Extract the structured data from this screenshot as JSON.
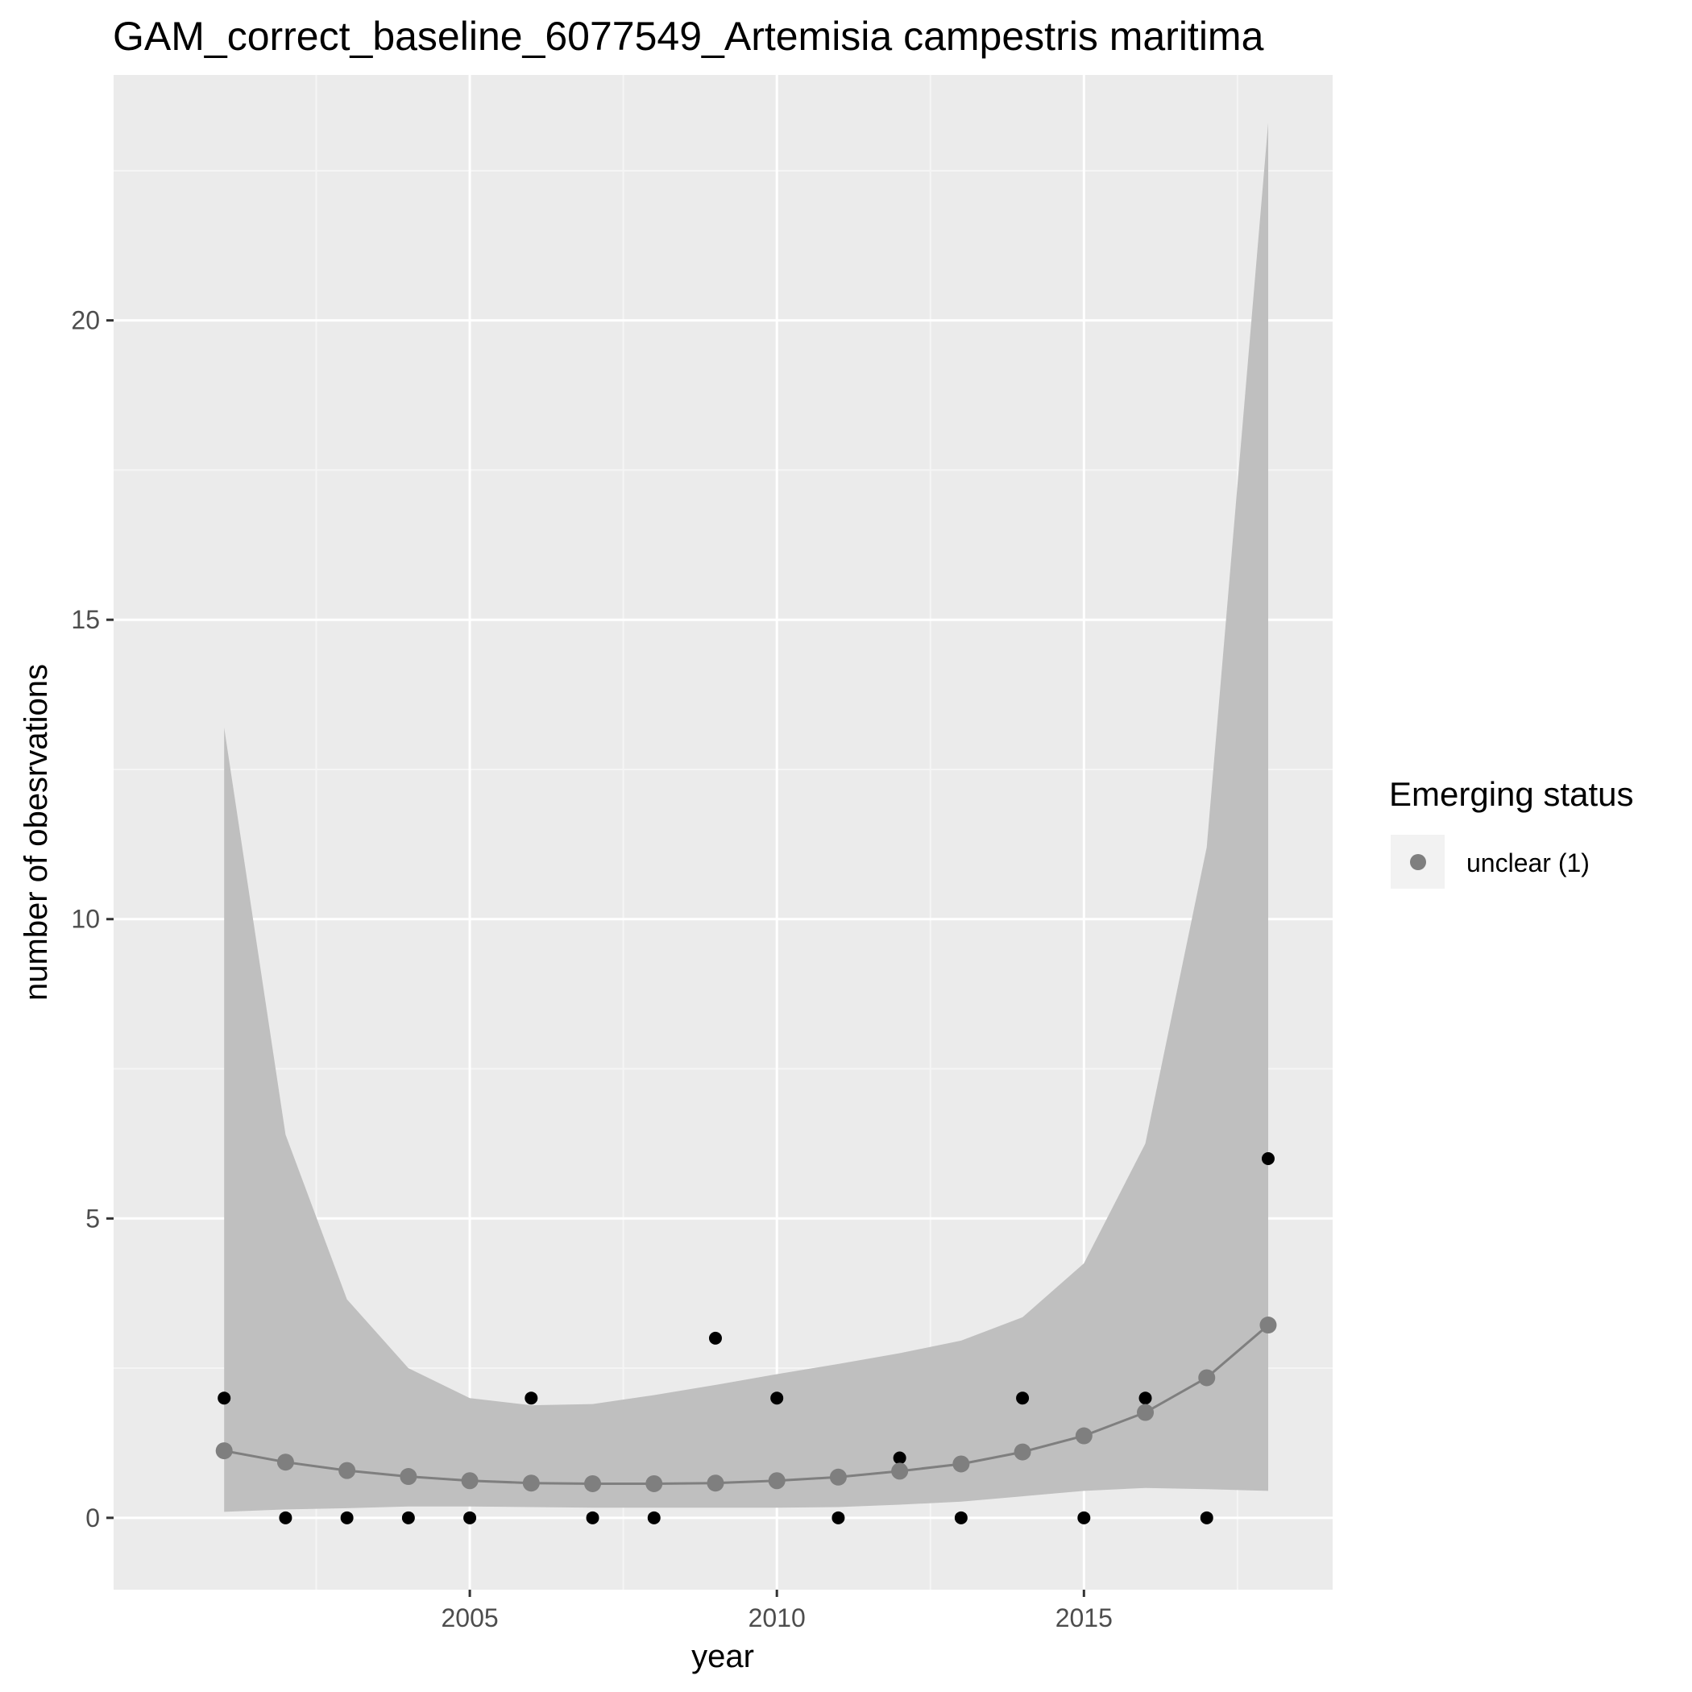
{
  "chart_data": {
    "type": "scatter",
    "title": "GAM_correct_baseline_6077549_Artemisia campestris maritima",
    "xlabel": "year",
    "ylabel": "number of obesrvations",
    "xlim": [
      1999.2,
      2019.05
    ],
    "ylim": [
      -1.2,
      24.1
    ],
    "x_ticks": [
      2005,
      2010,
      2015
    ],
    "y_ticks": [
      0,
      5,
      10,
      15,
      20
    ],
    "grid": true,
    "legend": {
      "title": "Emerging status",
      "position": "right",
      "entries": [
        {
          "label": "unclear (1)",
          "color": "#7f7f7f"
        }
      ]
    },
    "observed": {
      "x": [
        2001,
        2002,
        2003,
        2004,
        2005,
        2006,
        2007,
        2008,
        2009,
        2010,
        2011,
        2012,
        2013,
        2014,
        2015,
        2016,
        2017,
        2018
      ],
      "y": [
        2,
        0,
        0,
        0,
        0,
        2,
        0,
        0,
        3,
        2,
        0,
        1,
        0,
        2,
        0,
        2,
        0,
        6
      ],
      "color": "#000000"
    },
    "fitted": {
      "name": "unclear (1)",
      "x": [
        2001,
        2002,
        2003,
        2004,
        2005,
        2006,
        2007,
        2008,
        2009,
        2010,
        2011,
        2012,
        2013,
        2014,
        2015,
        2016,
        2017,
        2018
      ],
      "y": [
        1.12,
        0.93,
        0.79,
        0.69,
        0.62,
        0.58,
        0.57,
        0.57,
        0.58,
        0.62,
        0.68,
        0.78,
        0.9,
        1.1,
        1.37,
        1.76,
        2.34,
        3.22
      ],
      "lower": [
        0.1,
        0.14,
        0.16,
        0.19,
        0.19,
        0.18,
        0.17,
        0.17,
        0.17,
        0.17,
        0.18,
        0.22,
        0.27,
        0.36,
        0.45,
        0.5,
        0.48,
        0.45
      ],
      "upper": [
        13.2,
        6.4,
        3.65,
        2.5,
        2.0,
        1.88,
        1.9,
        2.05,
        2.22,
        2.4,
        2.57,
        2.75,
        2.96,
        3.35,
        4.25,
        6.25,
        11.2,
        23.3
      ],
      "color": "#7f7f7f",
      "ribbon_color": "#bfbfbf"
    },
    "colors": {
      "panel_background": "#ebebeb",
      "grid_major": "#ffffff",
      "grid_minor": "#f5f5f5",
      "legend_key_background": "#f2f2f2"
    }
  }
}
